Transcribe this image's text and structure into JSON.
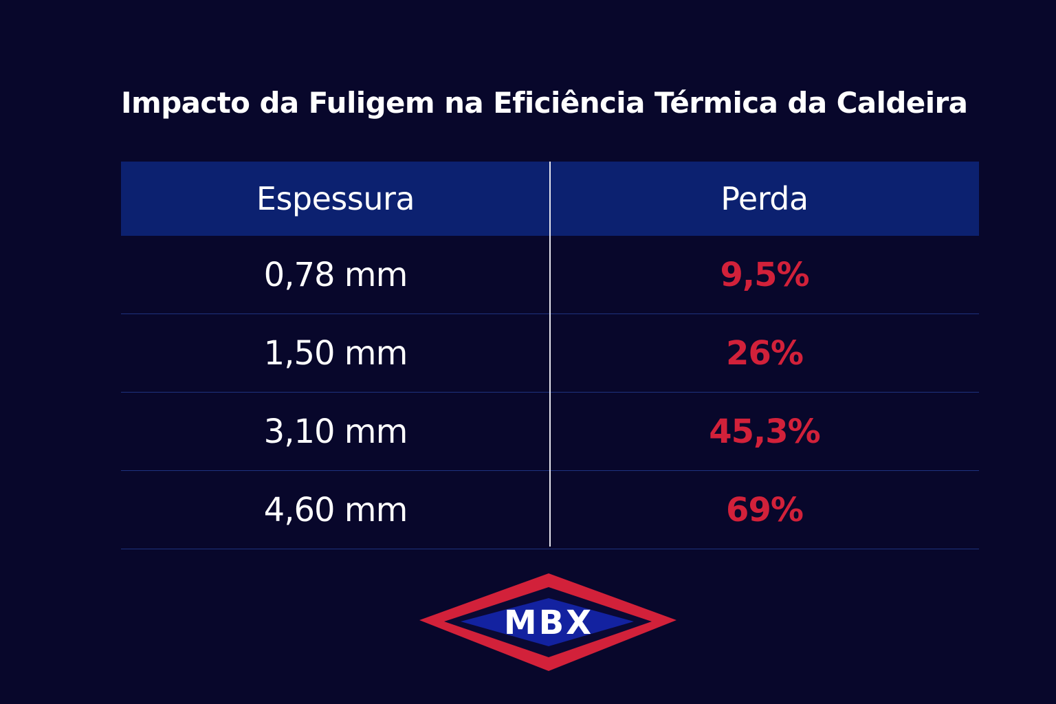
{
  "title": "Impacto da Fuligem na Eficiência Térmica da Caldeira",
  "table": {
    "columns": [
      "Espessura",
      "Perda"
    ],
    "rows": [
      {
        "thickness": "0,78 mm",
        "loss": "9,5%"
      },
      {
        "thickness": "1,50 mm",
        "loss": "26%"
      },
      {
        "thickness": "3,10 mm",
        "loss": "45,3%"
      },
      {
        "thickness": "4,60 mm",
        "loss": "69%"
      }
    ]
  },
  "chart_data": {
    "type": "table",
    "title": "Impacto da Fuligem na Eficiência Térmica da Caldeira",
    "columns": [
      "Espessura",
      "Perda"
    ],
    "rows": [
      [
        "0,78 mm",
        "9,5%"
      ],
      [
        "1,50 mm",
        "26%"
      ],
      [
        "3,10 mm",
        "45,3%"
      ],
      [
        "4,60 mm",
        "69%"
      ]
    ]
  },
  "logo": {
    "text": "MBX"
  },
  "colors": {
    "background": "#08072b",
    "header": "#0c2170",
    "accent_red": "#d2213a",
    "logo_blue": "#1322a0",
    "text": "#ffffff"
  }
}
